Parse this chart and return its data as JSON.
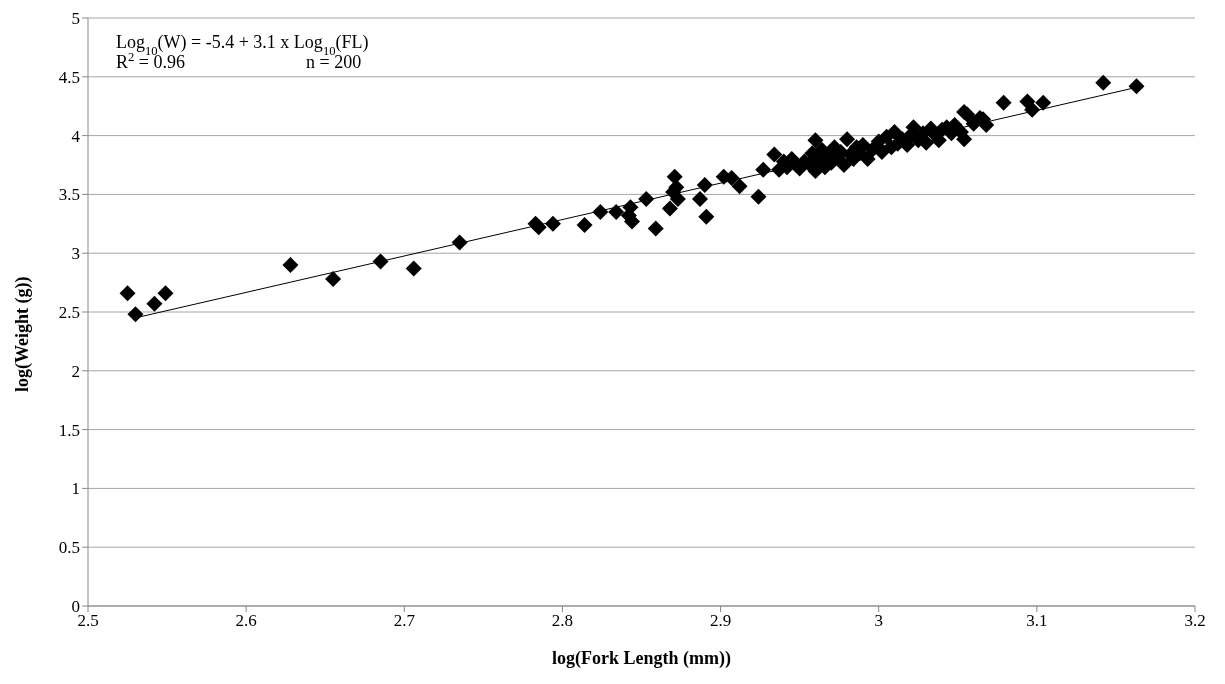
{
  "chart_data": {
    "type": "scatter",
    "xlabel": "log(Fork Length (mm))",
    "ylabel": "log(Weight (g))",
    "annotations": [
      "Log$_{10}$(W) = -5.4 + 3.1 x Log$_{10}$(FL)",
      "R$^{2}$ = 0.96",
      "n = 200"
    ],
    "xlim": [
      2.5,
      3.2
    ],
    "xticks": [
      2.5,
      2.6,
      2.7,
      2.8,
      2.9,
      3,
      3.1,
      3.2
    ],
    "ylim": [
      0,
      5
    ],
    "yticks": [
      0,
      0.5,
      1,
      1.5,
      2,
      2.5,
      3,
      3.5,
      4,
      4.5,
      5
    ],
    "grid": "y",
    "series": [
      {
        "marker": "diamond",
        "color": "#000000",
        "x": [
          2.525,
          2.53,
          2.542,
          2.549,
          2.628,
          2.655,
          2.685,
          2.706,
          2.735,
          2.783,
          2.785,
          2.794,
          2.814,
          2.824,
          2.834,
          2.842,
          2.843,
          2.844,
          2.853,
          2.859,
          2.868,
          2.871,
          2.87,
          2.873,
          2.872,
          2.887,
          2.89,
          2.891,
          2.902,
          2.907,
          2.912,
          2.924,
          2.927,
          2.934,
          2.937,
          2.94,
          2.942,
          2.945,
          2.948,
          2.95,
          2.953,
          2.956,
          2.958,
          2.96,
          2.96,
          2.962,
          2.964,
          2.966,
          2.968,
          2.97,
          2.972,
          2.974,
          2.976,
          2.978,
          2.98,
          2.982,
          2.984,
          2.986,
          2.988,
          2.99,
          2.993,
          2.996,
          3.0,
          3.002,
          3.005,
          3.008,
          3.01,
          3.012,
          3.015,
          3.018,
          3.02,
          3.022,
          3.025,
          3.028,
          3.03,
          3.033,
          3.036,
          3.038,
          3.04,
          3.043,
          3.046,
          3.048,
          3.052,
          3.054,
          3.054,
          3.056,
          3.06,
          3.064,
          3.066,
          3.068,
          3.079,
          3.094,
          3.097,
          3.104,
          3.142,
          3.163
        ],
        "values": [
          2.66,
          2.48,
          2.57,
          2.66,
          2.9,
          2.78,
          2.93,
          2.87,
          3.09,
          3.25,
          3.22,
          3.25,
          3.24,
          3.35,
          3.35,
          3.32,
          3.39,
          3.27,
          3.46,
          3.21,
          3.38,
          3.65,
          3.52,
          3.46,
          3.56,
          3.46,
          3.58,
          3.31,
          3.65,
          3.64,
          3.57,
          3.48,
          3.71,
          3.84,
          3.71,
          3.78,
          3.73,
          3.8,
          3.75,
          3.72,
          3.78,
          3.76,
          3.85,
          3.96,
          3.7,
          3.8,
          3.88,
          3.73,
          3.83,
          3.77,
          3.9,
          3.81,
          3.86,
          3.75,
          3.97,
          3.84,
          3.8,
          3.9,
          3.85,
          3.92,
          3.8,
          3.88,
          3.95,
          3.86,
          3.99,
          3.9,
          4.03,
          3.93,
          3.97,
          3.92,
          4.0,
          4.07,
          3.96,
          4.02,
          3.94,
          4.06,
          4.0,
          3.96,
          4.05,
          4.07,
          4.02,
          4.09,
          4.03,
          4.2,
          3.97,
          4.18,
          4.1,
          4.15,
          4.14,
          4.09,
          4.28,
          4.29,
          4.22,
          4.28,
          4.45,
          4.42
        ]
      },
      {
        "type": "line",
        "color": "#000000",
        "x": [
          2.53,
          3.163
        ],
        "values": [
          2.45,
          4.41
        ]
      }
    ]
  }
}
